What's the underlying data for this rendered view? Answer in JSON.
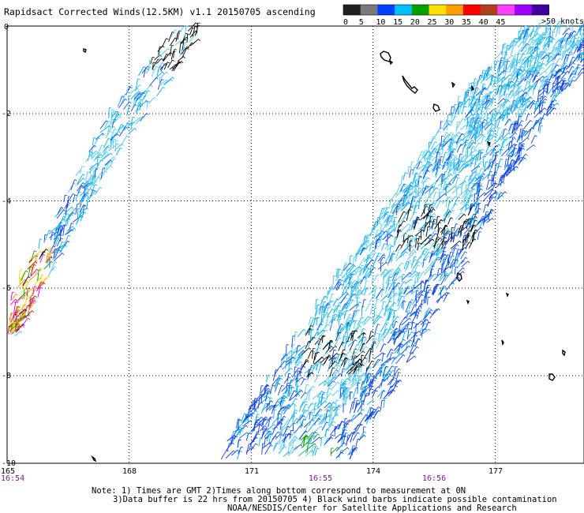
{
  "title": "Rapidsact Corrected Winds(12.5KM) v1.1 20150705 ascending",
  "legend": {
    "unit_label": ">50 knots",
    "ticks": [
      "0",
      "5",
      "10",
      "15",
      "20",
      "25",
      "30",
      "35",
      "40",
      "45"
    ],
    "colors": [
      "#202020",
      "#7a7a7a",
      "#0040ff",
      "#00c0ff",
      "#00a000",
      "#ffe000",
      "#ffa000",
      "#ff0000",
      "#b04020",
      "#ff40ff",
      "#a000ff",
      "#4000a0"
    ]
  },
  "axes": {
    "lon_labels": [
      "165",
      "168",
      "171",
      "174",
      "177"
    ],
    "lat_labels": [
      "0",
      "-2",
      "-4",
      "-6",
      "-8",
      "-10"
    ],
    "lon_range": [
      165,
      179.5
    ],
    "lat_range": [
      0,
      -10
    ]
  },
  "times": [
    "16:54",
    "16:55",
    "16:56"
  ],
  "notes": {
    "line1": "Note: 1) Times are GMT 2)Times along bottom correspond to measurement at 0N",
    "line2": "3)Data buffer is 22 hrs from 20150705 4) Black wind barbs indicate possible contamination",
    "line3": "NOAA/NESDIS/Center for Satellite Applications and Research"
  },
  "wind_colors": {
    "light_blue": "#4ec8f0",
    "cyan": "#00b0e8",
    "dark_blue": "#1040e0",
    "contamination": "#000000",
    "green": "#00a000",
    "yellow": "#ffd000",
    "orange": "#ff9000",
    "red": "#e00000",
    "magenta": "#d000d0"
  }
}
